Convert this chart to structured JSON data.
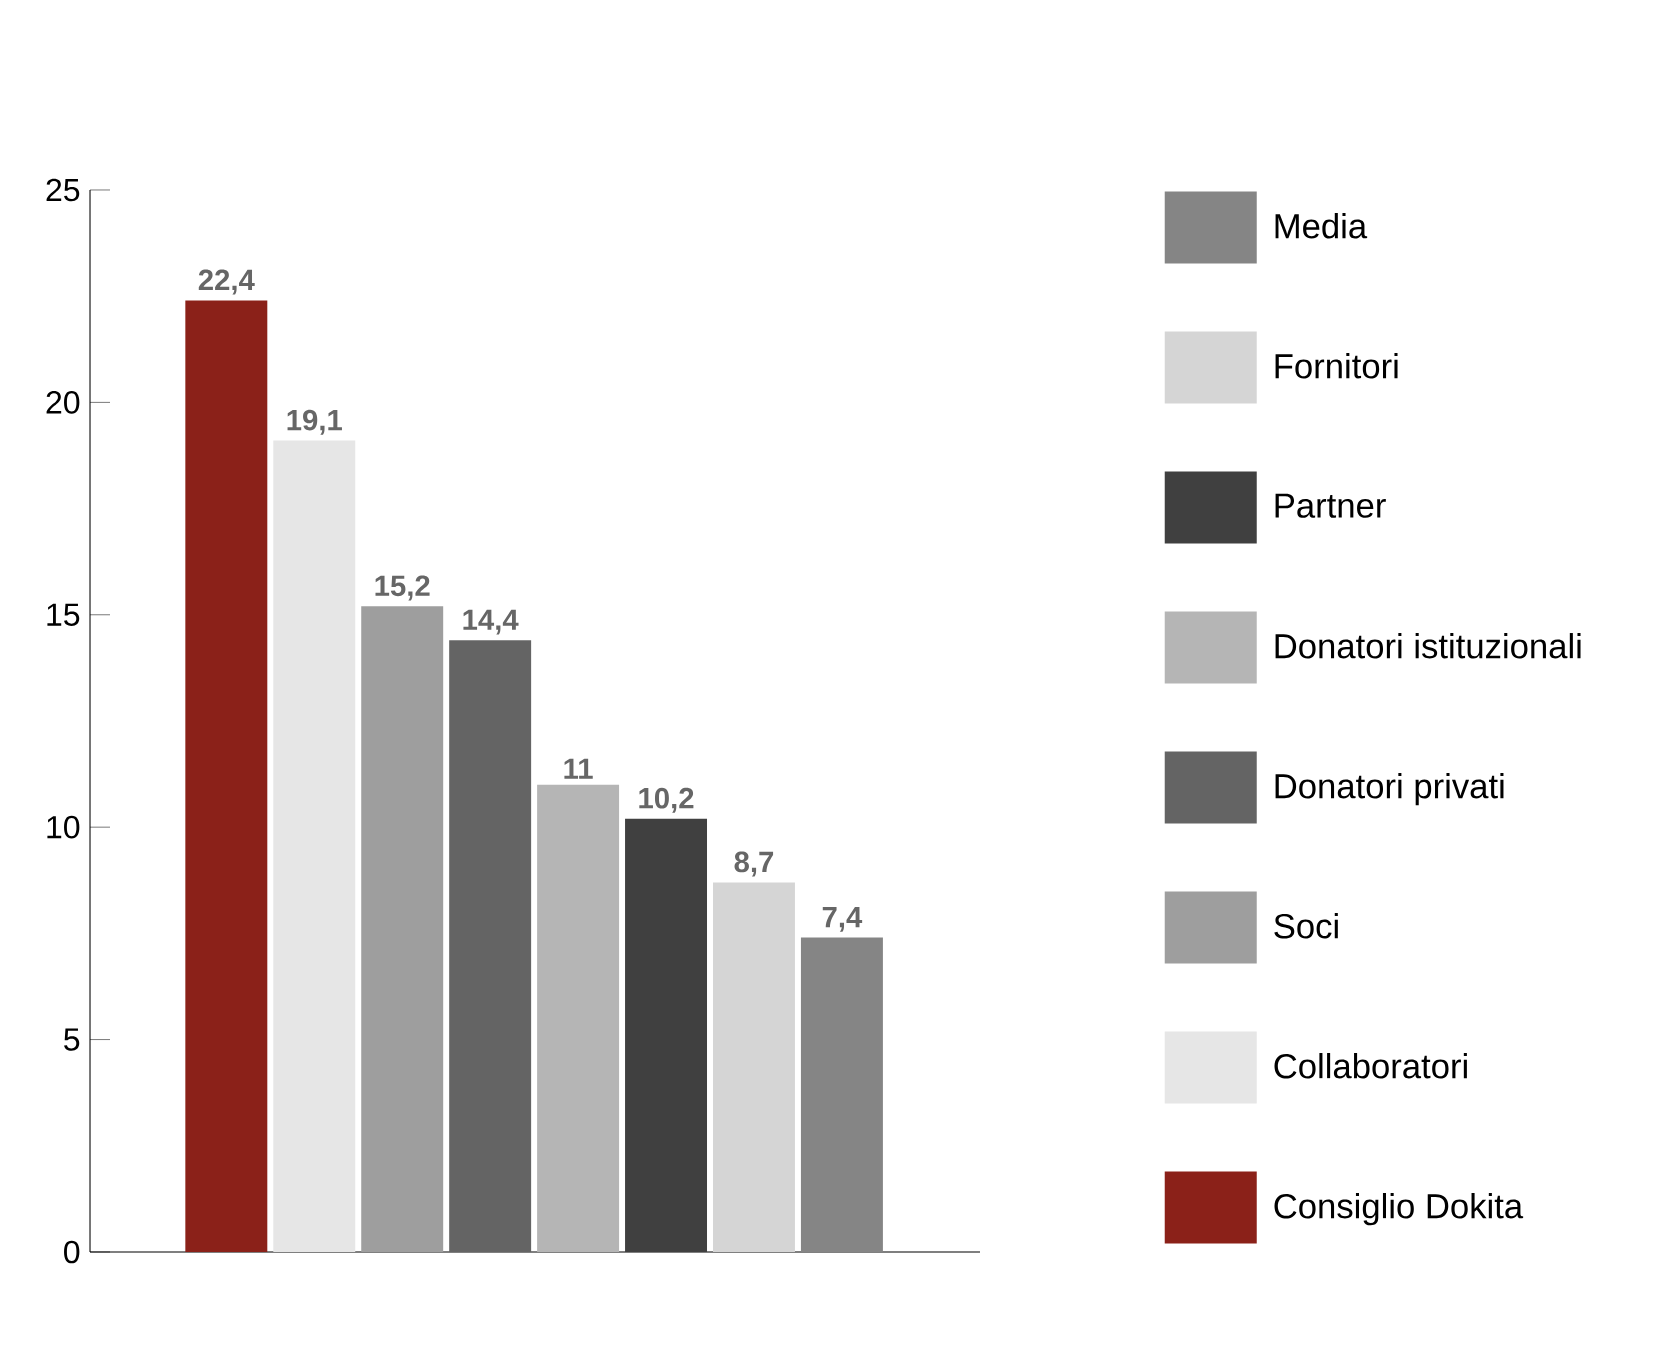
{
  "chart_data": {
    "type": "bar",
    "stacked": true,
    "categories": [
      null,
      null,
      null,
      null,
      null,
      null,
      null,
      null
    ],
    "series": [
      {
        "name": "Media",
        "color": "#858585",
        "values": [
          null,
          null,
          null,
          null,
          null,
          null,
          null,
          7.4
        ],
        "value_labels": [
          null,
          null,
          null,
          null,
          null,
          null,
          null,
          "7,4"
        ]
      },
      {
        "name": "Fornitori",
        "color": "#d5d5d5",
        "values": [
          null,
          null,
          null,
          null,
          null,
          null,
          8.7,
          null
        ],
        "value_labels": [
          null,
          null,
          null,
          null,
          null,
          null,
          "8,7",
          null
        ]
      },
      {
        "name": "Partner",
        "color": "#404040",
        "values": [
          null,
          null,
          null,
          null,
          null,
          10.2,
          null,
          null
        ],
        "value_labels": [
          null,
          null,
          null,
          null,
          null,
          "10,2",
          null,
          null
        ]
      },
      {
        "name": "Donatori istituzionali",
        "color": "#b5b5b5",
        "values": [
          null,
          null,
          null,
          null,
          11,
          null,
          null,
          null
        ],
        "value_labels": [
          null,
          null,
          null,
          null,
          "11",
          null,
          null,
          null
        ]
      },
      {
        "name": "Donatori privati",
        "color": "#646464",
        "values": [
          null,
          null,
          null,
          14.4,
          null,
          null,
          null,
          null
        ],
        "value_labels": [
          null,
          null,
          null,
          "14,4",
          null,
          null,
          null,
          null
        ]
      },
      {
        "name": "Soci",
        "color": "#9e9e9e",
        "values": [
          null,
          null,
          15.2,
          null,
          null,
          null,
          null,
          null
        ],
        "value_labels": [
          null,
          null,
          "15,2",
          null,
          null,
          null,
          null,
          null
        ]
      },
      {
        "name": "Collaboratori",
        "color": "#e6e6e6",
        "values": [
          null,
          19.1,
          null,
          null,
          null,
          null,
          null,
          null
        ],
        "value_labels": [
          null,
          "19,1",
          null,
          null,
          null,
          null,
          null,
          null
        ]
      },
      {
        "name": "Consiglio Dokita",
        "color": "#8b2119",
        "values": [
          22.4,
          null,
          null,
          null,
          null,
          null,
          null,
          null
        ],
        "value_labels": [
          "22,4",
          null,
          null,
          null,
          null,
          null,
          null,
          null
        ]
      }
    ],
    "ylim": [
      0,
      25
    ],
    "yticks": [
      0,
      5,
      10,
      15,
      20,
      25
    ],
    "legend": "right"
  }
}
